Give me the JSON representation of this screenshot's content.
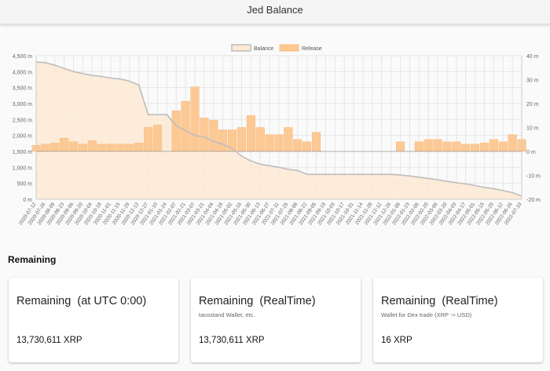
{
  "header": {
    "title": "Jed Balance"
  },
  "chart": {
    "legend": [
      "Balance",
      "Release"
    ],
    "colors": {
      "balance_fill": "#fde9d4",
      "balance_line": "#bdbdbd",
      "release_fill": "#fcc995",
      "release_stroke": "#f9b26c",
      "grid": "#e6e6e6",
      "axis_text": "#666666"
    }
  },
  "chart_data": {
    "type": "bar",
    "legend_position": "top",
    "grid": true,
    "x_tick_labels": [
      "2020-07-12",
      "2020-07-26",
      "2020-08-09",
      "2020-08-23",
      "2020-09-06",
      "2020-09-20",
      "2020-10-04",
      "2020-10-18",
      "2020-11-01",
      "2020-11-15",
      "2020-11-29",
      "2020-12-13",
      "2020-12-27",
      "2021-01-10",
      "2021-01-24",
      "2021-02-07",
      "2021-02-21",
      "2021-03-07",
      "2021-03-21",
      "2021-04-04",
      "2021-04-18",
      "2021-05-02",
      "2021-05-16",
      "2021-05-30",
      "2021-06-13",
      "2021-06-27",
      "2021-07-11",
      "2021-07-25",
      "2021-08-08",
      "2021-08-22",
      "2021-09-05",
      "2021-09-19",
      "2021-10-03",
      "2021-10-17",
      "2021-10-31",
      "2021-11-14",
      "2021-11-28",
      "2021-12-12",
      "2021-12-26",
      "2022-01-09",
      "2022-01-23",
      "2022-02-06",
      "2022-02-20",
      "2022-03-06",
      "2022-03-20",
      "2022-04-03",
      "2022-04-17",
      "2022-05-01",
      "2022-05-15",
      "2022-05-29",
      "2022-06-12",
      "2022-06-26",
      "2022-07-10"
    ],
    "y_left": {
      "ticks": [
        "0 m",
        "500 m",
        "1,000 m",
        "1,500 m",
        "2,000 m",
        "2,500 m",
        "3,000 m",
        "3,500 m",
        "4,000 m",
        "4,500 m"
      ],
      "range": [
        0,
        4500
      ]
    },
    "y_right": {
      "ticks": [
        "-20 m",
        "-10 m",
        "0 m",
        "10 m",
        "20 m",
        "30 m",
        "40 m"
      ],
      "range": [
        -20,
        40
      ]
    },
    "series": [
      {
        "name": "Balance",
        "kind": "area",
        "axis": "left",
        "values": [
          4300,
          4280,
          4200,
          4100,
          4000,
          3940,
          3880,
          3850,
          3800,
          3770,
          3700,
          3580,
          2650,
          2650,
          2650,
          2300,
          2150,
          2000,
          1950,
          1820,
          1720,
          1600,
          1350,
          1200,
          1100,
          1050,
          1000,
          940,
          900,
          780,
          780,
          780,
          780,
          780,
          780,
          780,
          780,
          780,
          780,
          760,
          730,
          690,
          650,
          610,
          560,
          520,
          480,
          430,
          370,
          330,
          270,
          210,
          100
        ]
      },
      {
        "name": "Release",
        "kind": "bar",
        "axis": "right",
        "values": [
          2.5,
          3,
          3.5,
          5.5,
          4,
          3,
          4.5,
          3,
          3,
          3,
          3,
          3.5,
          10,
          11,
          0,
          17,
          21,
          27,
          14,
          13,
          9,
          9,
          10,
          15,
          10,
          7,
          7,
          10,
          5,
          4,
          8,
          0,
          0,
          0,
          0,
          0,
          0,
          0,
          0,
          4,
          0,
          4,
          5,
          5,
          4,
          4,
          3,
          3,
          3.5,
          5,
          4,
          7,
          5
        ]
      }
    ]
  },
  "remaining": {
    "title": "Remaining",
    "cards": [
      {
        "title": "Remaining  (at UTC 0:00)",
        "subtitle": "",
        "value": "13,730,611 XRP"
      },
      {
        "title": "Remaining  (RealTime)",
        "subtitle": "tacostand Wallet, etc.",
        "value": "13,730,611 XRP"
      },
      {
        "title": "Remaining  (RealTime)",
        "subtitle": "Wallet for Dex trade (XRP -> USD)",
        "value": "16 XRP"
      }
    ]
  }
}
